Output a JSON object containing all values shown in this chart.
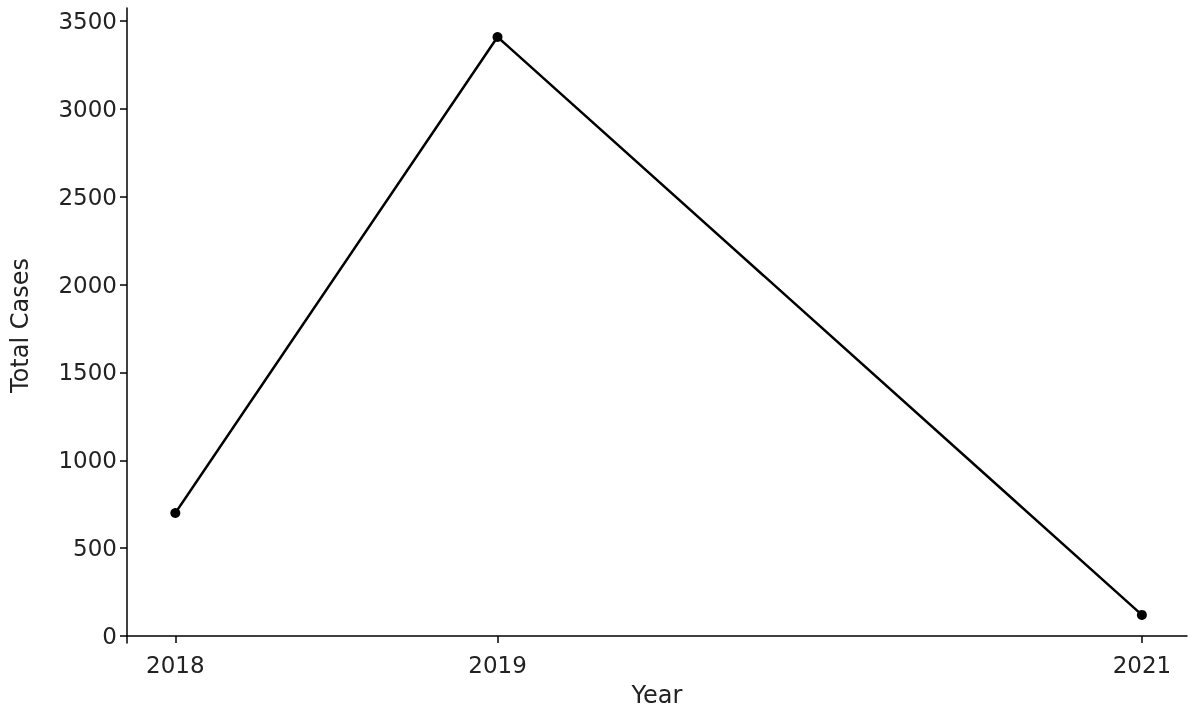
{
  "chart_data": {
    "type": "line",
    "xlabel": "Year",
    "ylabel": "Total Cases",
    "x": [
      2018,
      2019,
      2021
    ],
    "series": [
      {
        "color": "#000000",
        "values": [
          700,
          3410,
          120
        ]
      }
    ],
    "xlim": [
      2017.85,
      2021.14
    ],
    "xticks": [
      2018,
      2019,
      2021
    ],
    "ylim": [
      -40,
      3575
    ],
    "yticks": [
      0,
      500,
      1000,
      1500,
      2000,
      2500,
      3000,
      3500
    ],
    "grid": false,
    "marker": "circle",
    "line_style": "solid"
  }
}
